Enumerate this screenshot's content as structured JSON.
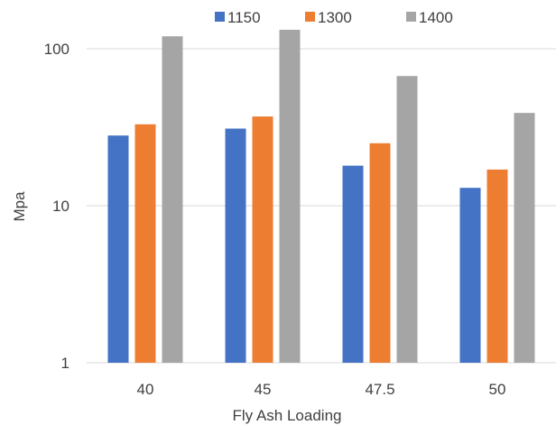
{
  "chart_data": {
    "type": "bar",
    "title": "",
    "xlabel": "Fly Ash Loading",
    "ylabel": "Mpa",
    "yscale": "log",
    "ylim": [
      1,
      160
    ],
    "ytick_labels": [
      "1",
      "10",
      "100"
    ],
    "grid": true,
    "legend_position": "top",
    "categories": [
      "40",
      "45",
      "47.5",
      "50"
    ],
    "series": [
      {
        "name": "1150",
        "color": "#4472C4",
        "values": [
          28,
          31,
          18,
          13
        ]
      },
      {
        "name": "1300",
        "color": "#ED7D31",
        "values": [
          33,
          37,
          25,
          17
        ]
      },
      {
        "name": "1400",
        "color": "#A5A5A5",
        "values": [
          120,
          132,
          67,
          39
        ]
      }
    ]
  }
}
